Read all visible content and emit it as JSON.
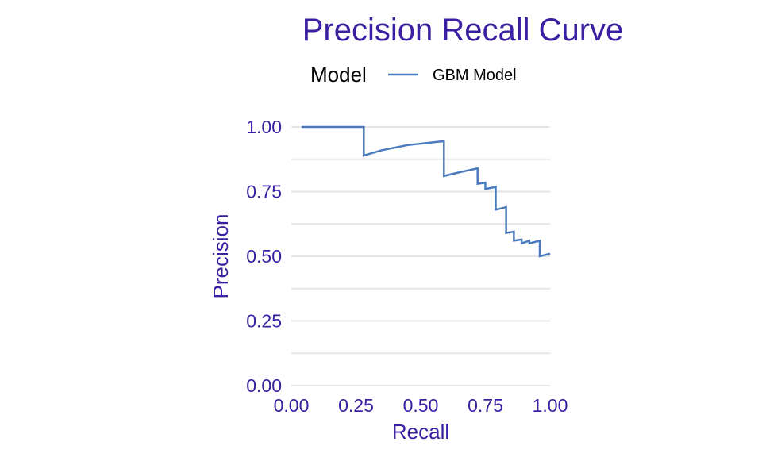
{
  "chart_data": {
    "type": "line",
    "title": "Precision Recall Curve",
    "xlabel": "Recall",
    "ylabel": "Precision",
    "xlim": [
      0,
      1
    ],
    "ylim": [
      0,
      1
    ],
    "xticks": [
      "0.00",
      "0.25",
      "0.50",
      "0.75",
      "1.00"
    ],
    "yticks": [
      "0.00",
      "0.25",
      "0.50",
      "0.75",
      "1.00"
    ],
    "grid": true,
    "legend": {
      "title": "Model",
      "position": "top",
      "entries": [
        {
          "name": "GBM Model",
          "color": "#4a7bbf"
        }
      ]
    },
    "colors": {
      "text": "#3a1fa3",
      "line": "#4a7bbf",
      "grid": "#e5e5e5"
    },
    "series": [
      {
        "name": "GBM Model",
        "x": [
          0.04,
          0.28,
          0.28,
          0.35,
          0.45,
          0.59,
          0.59,
          0.65,
          0.72,
          0.72,
          0.75,
          0.75,
          0.79,
          0.79,
          0.83,
          0.83,
          0.86,
          0.86,
          0.89,
          0.89,
          0.92,
          0.92,
          0.96,
          0.96,
          1.0
        ],
        "y": [
          1.0,
          1.0,
          0.89,
          0.91,
          0.93,
          0.945,
          0.81,
          0.825,
          0.84,
          0.78,
          0.785,
          0.76,
          0.768,
          0.68,
          0.69,
          0.59,
          0.595,
          0.56,
          0.565,
          0.55,
          0.56,
          0.55,
          0.56,
          0.5,
          0.51
        ]
      }
    ]
  }
}
